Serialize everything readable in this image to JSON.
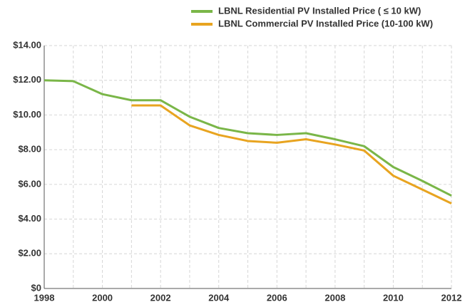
{
  "chart_data": {
    "type": "line",
    "x": [
      1998,
      1999,
      2000,
      2001,
      2002,
      2003,
      2004,
      2005,
      2006,
      2007,
      2008,
      2009,
      2010,
      2011,
      2012
    ],
    "series": [
      {
        "name": "LBNL Residential PV Installed Price ( ≤ 10 kW)",
        "color": "#7ab648",
        "values": [
          12.0,
          11.95,
          11.2,
          10.85,
          10.85,
          9.9,
          9.25,
          8.95,
          8.85,
          8.95,
          8.6,
          8.2,
          7.0,
          6.2,
          5.35
        ]
      },
      {
        "name": "LBNL Commercial PV Installed Price (10-100 kW)",
        "color": "#e8a420",
        "values": [
          null,
          null,
          null,
          10.55,
          10.55,
          9.4,
          8.85,
          8.5,
          8.4,
          8.6,
          8.3,
          7.95,
          6.5,
          5.7,
          4.9
        ]
      }
    ],
    "xlim": [
      1998,
      2012
    ],
    "xticks": [
      1998,
      2000,
      2002,
      2004,
      2006,
      2008,
      2010,
      2012
    ],
    "ylim": [
      0,
      14
    ],
    "yticks": [
      {
        "value": 0,
        "label": "$0"
      },
      {
        "value": 2,
        "label": "$2.00"
      },
      {
        "value": 4,
        "label": "$4.00"
      },
      {
        "value": 6,
        "label": "$6.00"
      },
      {
        "value": 8,
        "label": "$8.00"
      },
      {
        "value": 10,
        "label": "$10.00"
      },
      {
        "value": 12,
        "label": "$12.00"
      },
      {
        "value": 14,
        "label": "$14.00"
      }
    ],
    "grid": true,
    "legend": "top-right"
  }
}
